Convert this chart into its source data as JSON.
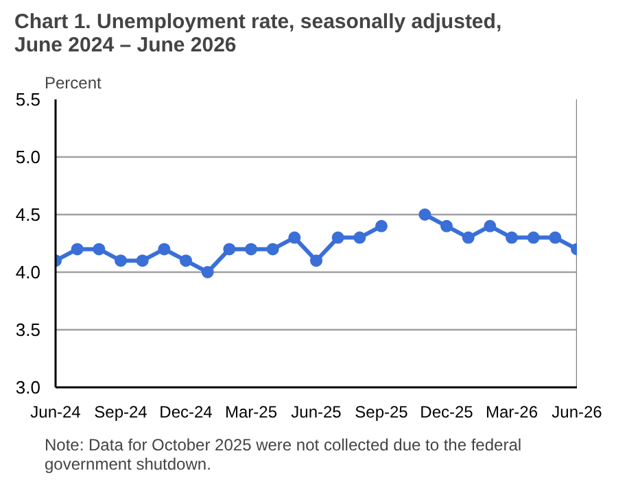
{
  "chart_data": {
    "type": "line",
    "title": "Chart 1. Unemployment rate, seasonally adjusted, June 2024 – June 2026",
    "ylabel": "Percent",
    "categories": [
      "Jun-24",
      null,
      null,
      "Sep-24",
      null,
      null,
      "Dec-24",
      null,
      null,
      "Mar-25",
      null,
      null,
      "Jun-25",
      null,
      null,
      "Sep-25",
      null,
      null,
      "Dec-25",
      null,
      null,
      "Mar-26",
      null,
      null,
      "Jun-26"
    ],
    "series": [
      {
        "color": "#3a6fd8",
        "values": [
          4.1,
          4.2,
          4.2,
          4.1,
          4.1,
          4.2,
          4.1,
          4.0,
          4.2,
          4.2,
          4.2,
          4.3,
          4.1,
          4.3,
          4.3,
          4.4,
          null,
          4.5,
          4.4,
          4.3,
          4.4,
          4.3,
          4.3,
          4.3,
          4.2
        ]
      }
    ],
    "ylim": [
      3.0,
      5.5
    ],
    "yticks": [
      {
        "value": 3.0,
        "label": "3.0"
      },
      {
        "value": 3.5,
        "label": "3.5"
      },
      {
        "value": 4.0,
        "label": "4.0"
      },
      {
        "value": 4.5,
        "label": "4.5"
      },
      {
        "value": 5.0,
        "label": "5.0"
      },
      {
        "value": 5.5,
        "label": "5.5"
      }
    ],
    "grid": "y",
    "marker": "circle",
    "line_style": "solid",
    "annotations": [
      "Note: Data for October 2025 were not collected due to the federal government shutdown."
    ]
  }
}
